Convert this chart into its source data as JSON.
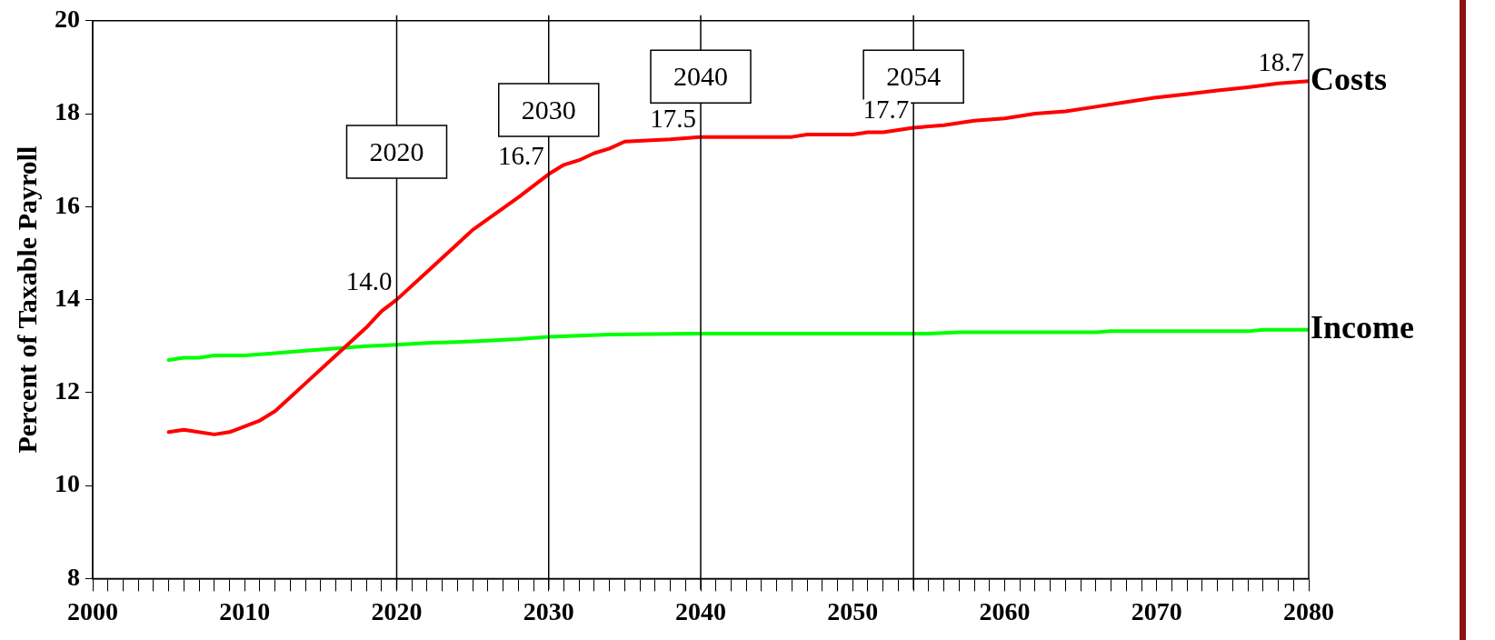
{
  "chart_data": {
    "type": "line",
    "ylabel": "Percent of Taxable Payroll",
    "xlim": [
      2000,
      2080
    ],
    "ylim": [
      8,
      20
    ],
    "xticks": [
      2000,
      {
        "value": 2001,
        "label": null
      },
      {
        "value": 2002,
        "label": null
      },
      {
        "value": 2003,
        "label": null
      },
      {
        "value": 2004,
        "label": null
      },
      {
        "value": 2005,
        "label": null
      },
      {
        "value": 2006,
        "label": null
      },
      {
        "value": 2007,
        "label": null
      },
      {
        "value": 2008,
        "label": null
      },
      {
        "value": 2009,
        "label": null
      },
      2010,
      {
        "value": 2011,
        "label": null
      },
      {
        "value": 2012,
        "label": null
      },
      {
        "value": 2013,
        "label": null
      },
      {
        "value": 2014,
        "label": null
      },
      {
        "value": 2015,
        "label": null
      },
      {
        "value": 2016,
        "label": null
      },
      {
        "value": 2017,
        "label": null
      },
      {
        "value": 2018,
        "label": null
      },
      {
        "value": 2019,
        "label": null
      },
      2020,
      {
        "value": 2021,
        "label": null
      },
      {
        "value": 2022,
        "label": null
      },
      {
        "value": 2023,
        "label": null
      },
      {
        "value": 2024,
        "label": null
      },
      {
        "value": 2025,
        "label": null
      },
      {
        "value": 2026,
        "label": null
      },
      {
        "value": 2027,
        "label": null
      },
      {
        "value": 2028,
        "label": null
      },
      {
        "value": 2029,
        "label": null
      },
      2030,
      {
        "value": 2031,
        "label": null
      },
      {
        "value": 2032,
        "label": null
      },
      {
        "value": 2033,
        "label": null
      },
      {
        "value": 2034,
        "label": null
      },
      {
        "value": 2035,
        "label": null
      },
      {
        "value": 2036,
        "label": null
      },
      {
        "value": 2037,
        "label": null
      },
      {
        "value": 2038,
        "label": null
      },
      {
        "value": 2039,
        "label": null
      },
      2040,
      {
        "value": 2041,
        "label": null
      },
      {
        "value": 2042,
        "label": null
      },
      {
        "value": 2043,
        "label": null
      },
      {
        "value": 2044,
        "label": null
      },
      {
        "value": 2045,
        "label": null
      },
      {
        "value": 2046,
        "label": null
      },
      {
        "value": 2047,
        "label": null
      },
      {
        "value": 2048,
        "label": null
      },
      {
        "value": 2049,
        "label": null
      },
      2050,
      {
        "value": 2051,
        "label": null
      },
      {
        "value": 2052,
        "label": null
      },
      {
        "value": 2053,
        "label": null
      },
      {
        "value": 2054,
        "label": null
      },
      {
        "value": 2055,
        "label": null
      },
      {
        "value": 2056,
        "label": null
      },
      {
        "value": 2057,
        "label": null
      },
      {
        "value": 2058,
        "label": null
      },
      {
        "value": 2059,
        "label": null
      },
      2060,
      {
        "value": 2061,
        "label": null
      },
      {
        "value": 2062,
        "label": null
      },
      {
        "value": 2063,
        "label": null
      },
      {
        "value": 2064,
        "label": null
      },
      {
        "value": 2065,
        "label": null
      },
      {
        "value": 2066,
        "label": null
      },
      {
        "value": 2067,
        "label": null
      },
      {
        "value": 2068,
        "label": null
      },
      {
        "value": 2069,
        "label": null
      },
      2070,
      {
        "value": 2071,
        "label": null
      },
      {
        "value": 2072,
        "label": null
      },
      {
        "value": 2073,
        "label": null
      },
      {
        "value": 2074,
        "label": null
      },
      {
        "value": 2075,
        "label": null
      },
      {
        "value": 2076,
        "label": null
      },
      {
        "value": 2077,
        "label": null
      },
      {
        "value": 2078,
        "label": null
      },
      {
        "value": 2079,
        "label": null
      },
      2080
    ],
    "yticks": [
      8,
      10,
      12,
      14,
      16,
      18,
      20
    ],
    "grid": false,
    "legend": false,
    "marker": "none",
    "line_style": "solid",
    "series": [
      {
        "name": "Costs",
        "color": "#ff0000",
        "x": [
          2005,
          2006,
          2008,
          2009,
          2011,
          2012,
          2013,
          2014,
          2016,
          2018,
          2019,
          2020,
          2022,
          2025,
          2028,
          2030,
          2031,
          2032,
          2033,
          2034,
          2035,
          2038,
          2040,
          2046,
          2047,
          2050,
          2051,
          2052,
          2054,
          2056,
          2058,
          2060,
          2062,
          2064,
          2066,
          2068,
          2070,
          2072,
          2074,
          2076,
          2078,
          2080
        ],
        "values": [
          11.15,
          11.2,
          11.1,
          11.15,
          11.4,
          11.6,
          11.9,
          12.2,
          12.8,
          13.4,
          13.75,
          14.0,
          14.6,
          15.5,
          16.2,
          16.7,
          16.9,
          17.0,
          17.15,
          17.25,
          17.4,
          17.45,
          17.5,
          17.5,
          17.55,
          17.55,
          17.6,
          17.6,
          17.7,
          17.75,
          17.85,
          17.9,
          18.0,
          18.05,
          18.15,
          18.25,
          18.35,
          18.42,
          18.5,
          18.57,
          18.65,
          18.7
        ]
      },
      {
        "name": "Income",
        "color": "#00ff00",
        "x": [
          2005,
          2006,
          2007,
          2008,
          2010,
          2012,
          2014,
          2016,
          2018,
          2020,
          2022,
          2025,
          2028,
          2030,
          2034,
          2040,
          2055,
          2057,
          2066,
          2067,
          2076,
          2077,
          2080
        ],
        "values": [
          12.7,
          12.75,
          12.75,
          12.8,
          12.8,
          12.85,
          12.9,
          12.95,
          13.0,
          13.03,
          13.07,
          13.1,
          13.15,
          13.2,
          13.25,
          13.27,
          13.27,
          13.3,
          13.3,
          13.32,
          13.32,
          13.35,
          13.35
        ]
      }
    ],
    "ref_lines": [
      {
        "axis": "x",
        "value": 2020,
        "label": "2020",
        "color": "#000000"
      },
      {
        "axis": "x",
        "value": 2030,
        "label": "2030",
        "color": "#000000"
      },
      {
        "axis": "x",
        "value": 2040,
        "label": "2040",
        "color": "#000000"
      },
      {
        "axis": "x",
        "value": 2054,
        "label": "2054",
        "color": "#000000"
      }
    ],
    "annotations": [
      {
        "text": "14.0",
        "x": 2020,
        "y": 14.0
      },
      {
        "text": "16.7",
        "x": 2030,
        "y": 16.7
      },
      {
        "text": "17.5",
        "x": 2040,
        "y": 17.5
      },
      {
        "text": "17.7",
        "x": 2054,
        "y": 17.7
      },
      {
        "text": "18.7",
        "x": 2080,
        "y": 18.7
      }
    ]
  }
}
